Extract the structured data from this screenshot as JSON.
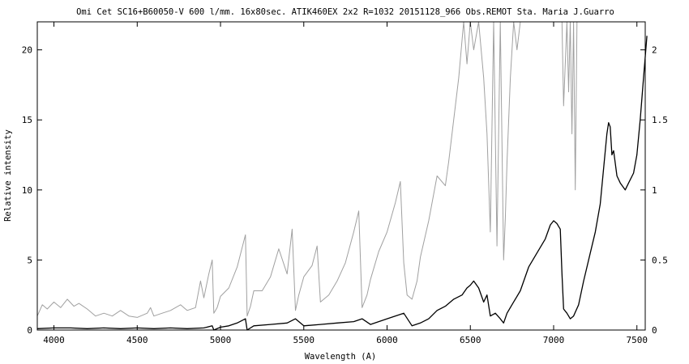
{
  "chart_data": {
    "type": "line",
    "title": "Omi Cet SC16+B60050-V 600 l/mm. 16x80sec. ATIK460EX  2x2 R=1032 20151128_966 Obs.REMOT Sta. Maria  J.Guarro",
    "xlabel": "Wavelength (A)",
    "ylabel": "Relative intensity",
    "xlim": [
      3900,
      7550
    ],
    "ylim": [
      0,
      22
    ],
    "y2lim": [
      0,
      2.2
    ],
    "xticks": [
      4000,
      4500,
      5000,
      5500,
      6000,
      6500,
      7000,
      7500
    ],
    "yticks": [
      0,
      5,
      10,
      15,
      20
    ],
    "y2ticks": [
      0,
      0.5,
      1,
      1.5,
      2
    ],
    "y2ticklabels": [
      "0",
      "0.5",
      "1",
      "1.5",
      "2"
    ],
    "grid": false,
    "series": [
      {
        "axis": "left",
        "color": "#a0a0a0",
        "x": [
          3900,
          3930,
          3960,
          4000,
          4040,
          4080,
          4120,
          4150,
          4200,
          4250,
          4300,
          4350,
          4400,
          4450,
          4500,
          4560,
          4580,
          4600,
          4650,
          4700,
          4760,
          4800,
          4850,
          4880,
          4900,
          4930,
          4950,
          4960,
          4980,
          5000,
          5050,
          5100,
          5150,
          5160,
          5180,
          5200,
          5250,
          5300,
          5350,
          5400,
          5430,
          5450,
          5470,
          5500,
          5550,
          5580,
          5600,
          5650,
          5700,
          5750,
          5800,
          5830,
          5850,
          5880,
          5900,
          5950,
          6000,
          6050,
          6080,
          6100,
          6120,
          6150,
          6180,
          6200,
          6250,
          6300,
          6350,
          6370,
          6400,
          6430,
          6460,
          6480,
          6500,
          6520,
          6550,
          6580,
          6600,
          6620,
          6640,
          6660,
          6680,
          6700,
          6710,
          6720,
          6740,
          6760,
          6780,
          6800,
          6830,
          6860,
          6900,
          6940,
          6970,
          7000,
          7050,
          7060,
          7080,
          7090,
          7100,
          7110,
          7120,
          7130,
          7140,
          7150,
          7170
        ],
        "values": [
          1.0,
          1.8,
          1.5,
          2.0,
          1.6,
          2.2,
          1.7,
          1.9,
          1.5,
          1.0,
          1.2,
          1.0,
          1.4,
          1.0,
          0.9,
          1.2,
          1.6,
          1.0,
          1.2,
          1.4,
          1.8,
          1.4,
          1.6,
          3.5,
          2.3,
          4.0,
          5.0,
          1.2,
          1.6,
          2.4,
          3.0,
          4.5,
          6.8,
          1.0,
          1.7,
          2.8,
          2.8,
          3.8,
          5.8,
          4.0,
          7.2,
          1.4,
          2.5,
          3.8,
          4.6,
          6.0,
          2.0,
          2.5,
          3.5,
          4.8,
          7.0,
          8.5,
          1.6,
          2.5,
          3.6,
          5.6,
          7.0,
          9.1,
          10.6,
          4.8,
          2.5,
          2.2,
          3.5,
          5.2,
          7.8,
          11.0,
          10.3,
          12.0,
          15.0,
          18.0,
          22.0,
          19.0,
          22.0,
          20.0,
          22.0,
          18.0,
          14.0,
          7.0,
          22.0,
          6.0,
          22.0,
          5.0,
          8.0,
          12.0,
          18.0,
          22.0,
          20.0,
          22.0,
          22.0,
          22.0,
          22.0,
          22.0,
          22.0,
          22.0,
          22.0,
          16.0,
          22.0,
          17.0,
          22.0,
          14.0,
          22.0,
          10.0,
          22.0,
          22.0,
          22.0
        ]
      },
      {
        "axis": "right",
        "color": "#000000",
        "x": [
          3900,
          4000,
          4100,
          4200,
          4300,
          4400,
          4500,
          4600,
          4700,
          4800,
          4900,
          4950,
          4960,
          5000,
          5050,
          5100,
          5150,
          5160,
          5200,
          5300,
          5400,
          5450,
          5500,
          5600,
          5700,
          5800,
          5850,
          5900,
          6000,
          6100,
          6150,
          6200,
          6250,
          6300,
          6350,
          6400,
          6450,
          6480,
          6500,
          6520,
          6550,
          6580,
          6600,
          6620,
          6650,
          6680,
          6700,
          6720,
          6750,
          6800,
          6850,
          6900,
          6950,
          6980,
          7000,
          7020,
          7040,
          7050,
          7060,
          7080,
          7100,
          7120,
          7150,
          7180,
          7200,
          7220,
          7250,
          7280,
          7300,
          7320,
          7330,
          7340,
          7350,
          7360,
          7380,
          7400,
          7430,
          7450,
          7480,
          7500,
          7520,
          7540,
          7560
        ],
        "values": [
          0.01,
          0.015,
          0.015,
          0.01,
          0.015,
          0.01,
          0.015,
          0.01,
          0.015,
          0.01,
          0.015,
          0.03,
          0.0,
          0.02,
          0.03,
          0.05,
          0.08,
          0.0,
          0.03,
          0.04,
          0.05,
          0.08,
          0.03,
          0.04,
          0.05,
          0.06,
          0.08,
          0.04,
          0.08,
          0.12,
          0.03,
          0.05,
          0.08,
          0.14,
          0.17,
          0.22,
          0.25,
          0.3,
          0.32,
          0.35,
          0.3,
          0.2,
          0.25,
          0.1,
          0.12,
          0.08,
          0.05,
          0.12,
          0.18,
          0.28,
          0.45,
          0.55,
          0.65,
          0.75,
          0.78,
          0.76,
          0.72,
          0.4,
          0.15,
          0.12,
          0.08,
          0.1,
          0.18,
          0.35,
          0.45,
          0.55,
          0.7,
          0.9,
          1.15,
          1.4,
          1.48,
          1.45,
          1.25,
          1.28,
          1.1,
          1.05,
          1.0,
          1.05,
          1.12,
          1.25,
          1.5,
          1.8,
          2.1
        ]
      }
    ]
  }
}
